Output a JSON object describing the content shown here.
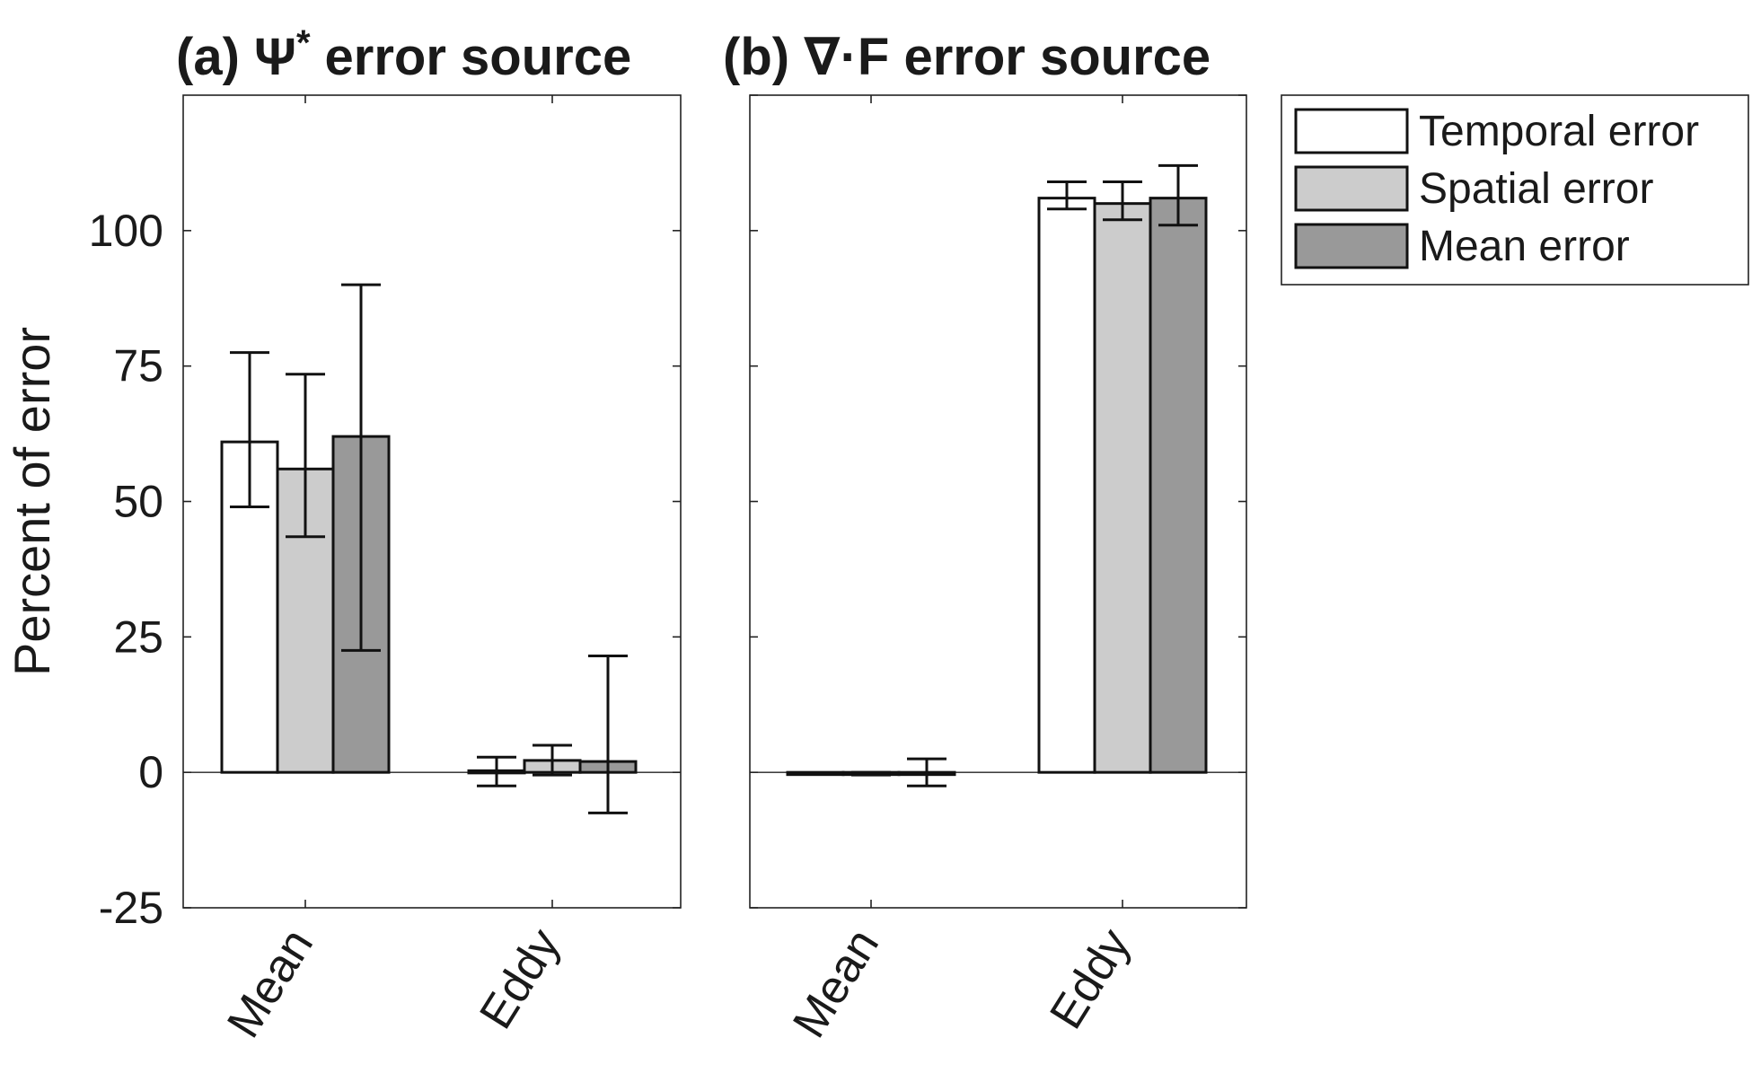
{
  "legend": {
    "entries": [
      "Temporal error",
      "Spatial error",
      "Mean error"
    ],
    "placement": "outside-right"
  },
  "series_colors": [
    "#ffffff",
    "#cccccc",
    "#999999"
  ],
  "chart_data": [
    {
      "type": "bar",
      "title": "(a) Ψ",
      "title_superscript": "*",
      "title_suffix": "error source",
      "ylabel": "Percent of error",
      "ylim": [
        -25,
        125
      ],
      "yticks": [
        -25,
        0,
        25,
        50,
        75,
        100
      ],
      "ytick_labels": [
        "-25",
        "0",
        "25",
        "50",
        "75",
        "100"
      ],
      "categories": [
        "Mean",
        "Eddy"
      ],
      "series": [
        {
          "name": "Temporal error",
          "values": [
            61,
            0.3
          ],
          "err_low": [
            49,
            -2.5
          ],
          "err_high": [
            77.5,
            2.8
          ]
        },
        {
          "name": "Spatial error",
          "values": [
            56,
            2.2
          ],
          "err_low": [
            43.5,
            -0.5
          ],
          "err_high": [
            73.5,
            5
          ]
        },
        {
          "name": "Mean error",
          "values": [
            62,
            2
          ],
          "err_low": [
            22.5,
            -7.5
          ],
          "err_high": [
            90,
            21.5
          ]
        }
      ]
    },
    {
      "type": "bar",
      "title": "(b) ∇·F error source",
      "ylabel": "",
      "ylim": [
        -25,
        125
      ],
      "yticks": [
        -25,
        0,
        25,
        50,
        75,
        100,
        125
      ],
      "ytick_labels": [],
      "categories": [
        "Mean",
        "Eddy"
      ],
      "series": [
        {
          "name": "Temporal error",
          "values": [
            0,
            106
          ],
          "err_low": [
            0,
            104
          ],
          "err_high": [
            0,
            109
          ]
        },
        {
          "name": "Spatial error",
          "values": [
            0,
            105
          ],
          "err_low": [
            -0.5,
            102
          ],
          "err_high": [
            0,
            109
          ]
        },
        {
          "name": "Mean error",
          "values": [
            0,
            106
          ],
          "err_low": [
            -2.5,
            101
          ],
          "err_high": [
            2.5,
            112
          ]
        }
      ]
    }
  ]
}
